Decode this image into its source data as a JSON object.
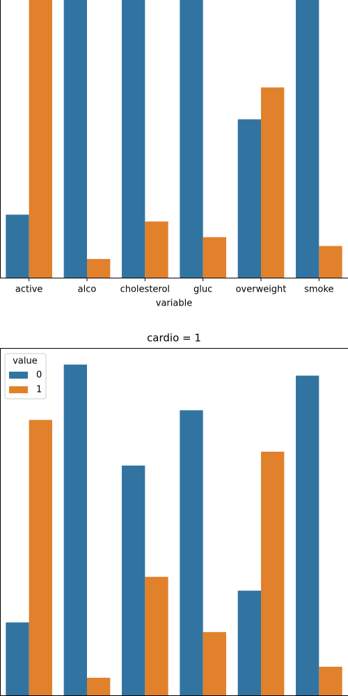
{
  "chart_data": [
    {
      "type": "bar",
      "xlabel": "variable",
      "categories": [
        "active",
        "alco",
        "cholesterol",
        "gluc",
        "overweight",
        "smoke"
      ],
      "series": [
        {
          "color": "#3274a1",
          "values": [
            6378,
            33080,
            29330,
            30894,
            15915,
            31781
          ]
        },
        {
          "color": "#e1812c",
          "values": [
            28643,
            1941,
            5691,
            4127,
            19106,
            3240
          ]
        }
      ],
      "ylim": [
        0,
        34814
      ]
    },
    {
      "type": "bar",
      "title": "cardio = 1",
      "legend_title": "value",
      "legend": "upper left",
      "categories": [
        null,
        null,
        null,
        null,
        null,
        null
      ],
      "series": [
        {
          "name": "0",
          "color": "#3274a1",
          "values": [
            7361,
            33156,
            23055,
            28585,
            10539,
            32050
          ]
        },
        {
          "name": "1",
          "color": "#e1812c",
          "values": [
            27618,
            1823,
            11924,
            6394,
            24440,
            2929
          ]
        }
      ],
      "ylim": [
        0,
        34814
      ]
    }
  ]
}
